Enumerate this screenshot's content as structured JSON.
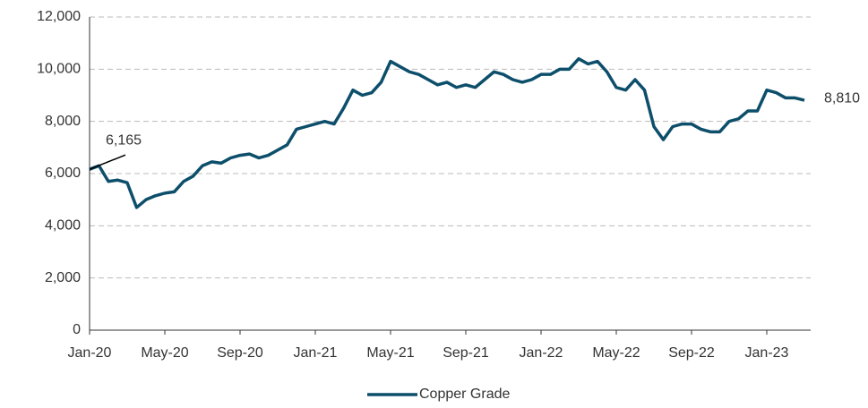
{
  "chart_data": {
    "type": "line",
    "categories": [
      "Jan-20",
      null,
      null,
      null,
      null,
      null,
      null,
      null,
      "May-20",
      null,
      null,
      null,
      null,
      null,
      null,
      null,
      "Sep-20",
      null,
      null,
      null,
      null,
      null,
      null,
      null,
      "Jan-21",
      null,
      null,
      null,
      null,
      null,
      null,
      null,
      "May-21",
      null,
      null,
      null,
      null,
      null,
      null,
      null,
      "Sep-21",
      null,
      null,
      null,
      null,
      null,
      null,
      null,
      "Jan-22",
      null,
      null,
      null,
      null,
      null,
      null,
      null,
      "May-22",
      null,
      null,
      null,
      null,
      null,
      null,
      null,
      "Sep-22",
      null,
      null,
      null,
      null,
      null,
      null,
      null,
      "Jan-23",
      null,
      null,
      null,
      null
    ],
    "series": [
      {
        "name": "Copper Grade",
        "color": "#0d4f6b",
        "values": [
          6165,
          6300,
          5700,
          5750,
          5650,
          4700,
          5000,
          5150,
          5250,
          5300,
          5700,
          5900,
          6300,
          6450,
          6400,
          6600,
          6700,
          6750,
          6600,
          6700,
          6900,
          7100,
          7700,
          7800,
          7900,
          8000,
          7900,
          8500,
          9200,
          9000,
          9100,
          9500,
          10300,
          10100,
          9900,
          9800,
          9600,
          9400,
          9500,
          9300,
          9400,
          9300,
          9600,
          9900,
          9800,
          9600,
          9500,
          9600,
          9800,
          9800,
          10000,
          10000,
          10400,
          10200,
          10300,
          9900,
          9300,
          9200,
          9600,
          9200,
          7800,
          7300,
          7800,
          7900,
          7900,
          7700,
          7600,
          7600,
          8000,
          8100,
          8400,
          8400,
          9200,
          9100,
          8900,
          8900,
          8810
        ],
        "value_labels": [
          "6,165",
          null,
          null,
          null,
          null,
          null,
          null,
          null,
          null,
          null,
          null,
          null,
          null,
          null,
          null,
          null,
          null,
          null,
          null,
          null,
          null,
          null,
          null,
          null,
          null,
          null,
          null,
          null,
          null,
          null,
          null,
          null,
          null,
          null,
          null,
          null,
          null,
          null,
          null,
          null,
          null,
          null,
          null,
          null,
          null,
          null,
          null,
          null,
          null,
          null,
          null,
          null,
          null,
          null,
          null,
          null,
          null,
          null,
          null,
          null,
          null,
          null,
          null,
          null,
          null,
          null,
          null,
          null,
          null,
          null,
          null,
          null,
          null,
          null,
          null,
          null,
          "8,810"
        ]
      }
    ],
    "ylim": [
      0,
      12000
    ],
    "yticks": [
      0,
      {
        "value": 2000,
        "label": "2,000"
      },
      {
        "value": 4000,
        "label": "4,000"
      },
      {
        "value": 6000,
        "label": "6,000"
      },
      {
        "value": 8000,
        "label": "8,000"
      },
      {
        "value": 10000,
        "label": "10,000"
      },
      {
        "value": 12000,
        "label": "12,000"
      }
    ],
    "grid": true,
    "legend": "bottom"
  }
}
